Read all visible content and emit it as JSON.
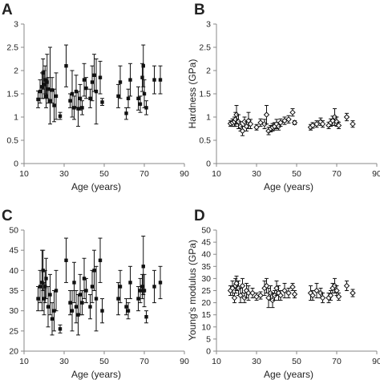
{
  "chart_data": [
    {
      "panel": "A",
      "type": "scatter",
      "marker": "filled-square",
      "xlabel": "Age (years)",
      "ylabel": "",
      "xlim": [
        10,
        90
      ],
      "ylim": [
        0,
        3
      ],
      "x_ticks": [
        "10",
        "30",
        "50",
        "70",
        "90"
      ],
      "y_ticks": [
        "0",
        "0.5",
        "1",
        "1.5",
        "2",
        "2.5",
        "3"
      ],
      "points": [
        {
          "x": 17,
          "y": 1.38,
          "lo": 1.2,
          "hi": 1.56
        },
        {
          "x": 18,
          "y": 1.55,
          "lo": 1.3,
          "hi": 1.8
        },
        {
          "x": 19,
          "y": 1.65,
          "lo": 1.4,
          "hi": 1.95
        },
        {
          "x": 19.5,
          "y": 1.95,
          "lo": 1.6,
          "hi": 2.25
        },
        {
          "x": 20,
          "y": 1.7,
          "lo": 1.4,
          "hi": 2.0
        },
        {
          "x": 20.5,
          "y": 1.8,
          "lo": 1.5,
          "hi": 2.1
        },
        {
          "x": 21,
          "y": 1.45,
          "lo": 1.2,
          "hi": 1.8
        },
        {
          "x": 21.5,
          "y": 1.75,
          "lo": 1.4,
          "hi": 2.35
        },
        {
          "x": 22,
          "y": 1.6,
          "lo": 1.3,
          "hi": 1.85
        },
        {
          "x": 23,
          "y": 1.35,
          "lo": 0.85,
          "hi": 2.5
        },
        {
          "x": 24,
          "y": 1.58,
          "lo": 1.3,
          "hi": 1.85
        },
        {
          "x": 25,
          "y": 1.25,
          "lo": 0.9,
          "hi": 1.6
        },
        {
          "x": 26,
          "y": 1.45,
          "lo": 0.95,
          "hi": 1.95
        },
        {
          "x": 28,
          "y": 1.02,
          "lo": 0.95,
          "hi": 1.1
        },
        {
          "x": 31,
          "y": 2.1,
          "lo": 1.65,
          "hi": 2.55
        },
        {
          "x": 33,
          "y": 1.35,
          "lo": 1.2,
          "hi": 1.5
        },
        {
          "x": 34,
          "y": 1.5,
          "lo": 1.0,
          "hi": 2.0
        },
        {
          "x": 35,
          "y": 1.2,
          "lo": 0.95,
          "hi": 1.45
        },
        {
          "x": 36,
          "y": 1.55,
          "lo": 1.2,
          "hi": 1.9
        },
        {
          "x": 37,
          "y": 1.18,
          "lo": 0.8,
          "hi": 1.55
        },
        {
          "x": 38,
          "y": 1.4,
          "lo": 1.15,
          "hi": 1.7
        },
        {
          "x": 39,
          "y": 1.2,
          "lo": 1.05,
          "hi": 1.35
        },
        {
          "x": 40,
          "y": 1.8,
          "lo": 1.45,
          "hi": 2.15
        },
        {
          "x": 41,
          "y": 1.62,
          "lo": 1.4,
          "hi": 1.85
        },
        {
          "x": 43,
          "y": 1.4,
          "lo": 1.2,
          "hi": 1.6
        },
        {
          "x": 44,
          "y": 1.75,
          "lo": 1.35,
          "hi": 2.1
        },
        {
          "x": 45,
          "y": 1.9,
          "lo": 1.55,
          "hi": 2.35
        },
        {
          "x": 46,
          "y": 1.55,
          "lo": 0.85,
          "hi": 2.25
        },
        {
          "x": 48,
          "y": 1.85,
          "lo": 1.5,
          "hi": 2.2
        },
        {
          "x": 49,
          "y": 1.32,
          "lo": 1.25,
          "hi": 1.4
        },
        {
          "x": 57,
          "y": 1.45,
          "lo": 1.2,
          "hi": 1.7
        },
        {
          "x": 58,
          "y": 1.75,
          "lo": 1.4,
          "hi": 2.1
        },
        {
          "x": 61,
          "y": 1.08,
          "lo": 0.95,
          "hi": 1.2
        },
        {
          "x": 62,
          "y": 1.4,
          "lo": 1.2,
          "hi": 1.6
        },
        {
          "x": 63,
          "y": 1.8,
          "lo": 1.45,
          "hi": 2.15
        },
        {
          "x": 67,
          "y": 1.4,
          "lo": 1.15,
          "hi": 1.65
        },
        {
          "x": 68,
          "y": 1.28,
          "lo": 1.1,
          "hi": 1.45
        },
        {
          "x": 69,
          "y": 1.85,
          "lo": 1.55,
          "hi": 2.15
        },
        {
          "x": 69.5,
          "y": 2.1,
          "lo": 1.65,
          "hi": 2.55
        },
        {
          "x": 70,
          "y": 1.5,
          "lo": 1.2,
          "hi": 1.8
        },
        {
          "x": 71,
          "y": 1.2,
          "lo": 1.05,
          "hi": 1.35
        },
        {
          "x": 75,
          "y": 1.8,
          "lo": 1.5,
          "hi": 2.1
        },
        {
          "x": 78,
          "y": 1.8,
          "lo": 1.5,
          "hi": 2.1
        }
      ]
    },
    {
      "panel": "B",
      "type": "scatter",
      "marker": "open-diamond",
      "xlabel": "Age (years)",
      "ylabel": "Hardness (GPa)",
      "xlim": [
        10,
        90
      ],
      "ylim": [
        0,
        3
      ],
      "x_ticks": [
        "10",
        "30",
        "50",
        "70",
        "90"
      ],
      "y_ticks": [
        "0",
        "0.5",
        "1",
        "1.5",
        "2",
        "2.5",
        "3"
      ],
      "points": [
        {
          "x": 17,
          "y": 0.86,
          "lo": 0.8,
          "hi": 0.92
        },
        {
          "x": 18,
          "y": 0.88,
          "lo": 0.8,
          "hi": 0.96
        },
        {
          "x": 19,
          "y": 0.9,
          "lo": 0.8,
          "hi": 1.0
        },
        {
          "x": 19.5,
          "y": 0.95,
          "lo": 0.8,
          "hi": 1.1
        },
        {
          "x": 20,
          "y": 1.05,
          "lo": 0.85,
          "hi": 1.25
        },
        {
          "x": 21,
          "y": 0.9,
          "lo": 0.75,
          "hi": 1.05
        },
        {
          "x": 22,
          "y": 0.8,
          "lo": 0.7,
          "hi": 0.9
        },
        {
          "x": 23,
          "y": 0.7,
          "lo": 0.6,
          "hi": 0.8
        },
        {
          "x": 24,
          "y": 0.9,
          "lo": 0.8,
          "hi": 1.0
        },
        {
          "x": 25,
          "y": 0.8,
          "lo": 0.7,
          "hi": 0.9
        },
        {
          "x": 26,
          "y": 0.92,
          "lo": 0.75,
          "hi": 1.1
        },
        {
          "x": 27,
          "y": 0.85,
          "lo": 0.75,
          "hi": 0.95
        },
        {
          "x": 30,
          "y": 0.78,
          "lo": 0.72,
          "hi": 0.84
        },
        {
          "x": 32,
          "y": 0.88,
          "lo": 0.8,
          "hi": 0.96
        },
        {
          "x": 34,
          "y": 0.85,
          "lo": 0.75,
          "hi": 0.95
        },
        {
          "x": 35,
          "y": 1.05,
          "lo": 0.85,
          "hi": 1.25
        },
        {
          "x": 36,
          "y": 0.7,
          "lo": 0.62,
          "hi": 0.78
        },
        {
          "x": 37,
          "y": 0.75,
          "lo": 0.68,
          "hi": 0.82
        },
        {
          "x": 38,
          "y": 0.78,
          "lo": 0.7,
          "hi": 0.86
        },
        {
          "x": 39,
          "y": 0.8,
          "lo": 0.72,
          "hi": 0.88
        },
        {
          "x": 40,
          "y": 0.85,
          "lo": 0.75,
          "hi": 0.95
        },
        {
          "x": 41,
          "y": 0.8,
          "lo": 0.72,
          "hi": 0.88
        },
        {
          "x": 42,
          "y": 0.88,
          "lo": 0.8,
          "hi": 0.96
        },
        {
          "x": 44,
          "y": 0.92,
          "lo": 0.84,
          "hi": 1.0
        },
        {
          "x": 46,
          "y": 0.95,
          "lo": 0.87,
          "hi": 1.03
        },
        {
          "x": 48,
          "y": 1.1,
          "lo": 1.02,
          "hi": 1.18
        },
        {
          "x": 49,
          "y": 0.88,
          "lo": 0.84,
          "hi": 0.92
        },
        {
          "x": 57,
          "y": 0.78,
          "lo": 0.72,
          "hi": 0.84
        },
        {
          "x": 58,
          "y": 0.82,
          "lo": 0.76,
          "hi": 0.88
        },
        {
          "x": 60,
          "y": 0.85,
          "lo": 0.78,
          "hi": 0.92
        },
        {
          "x": 62,
          "y": 0.9,
          "lo": 0.82,
          "hi": 0.98
        },
        {
          "x": 63,
          "y": 0.85,
          "lo": 0.78,
          "hi": 0.92
        },
        {
          "x": 66,
          "y": 0.82,
          "lo": 0.75,
          "hi": 0.89
        },
        {
          "x": 67,
          "y": 0.88,
          "lo": 0.8,
          "hi": 0.96
        },
        {
          "x": 68,
          "y": 0.92,
          "lo": 0.82,
          "hi": 1.02
        },
        {
          "x": 69,
          "y": 1.0,
          "lo": 0.82,
          "hi": 1.18
        },
        {
          "x": 70,
          "y": 0.9,
          "lo": 0.8,
          "hi": 1.0
        },
        {
          "x": 71,
          "y": 0.82,
          "lo": 0.75,
          "hi": 0.89
        },
        {
          "x": 75,
          "y": 1.0,
          "lo": 0.92,
          "hi": 1.08
        },
        {
          "x": 78,
          "y": 0.85,
          "lo": 0.78,
          "hi": 0.92
        }
      ]
    },
    {
      "panel": "C",
      "type": "scatter",
      "marker": "filled-square",
      "xlabel": "Age (years)",
      "ylabel": "",
      "xlim": [
        10,
        90
      ],
      "ylim": [
        20,
        50
      ],
      "x_ticks": [
        "10",
        "30",
        "50",
        "70",
        "90"
      ],
      "y_ticks": [
        "20",
        "25",
        "30",
        "35",
        "40",
        "45",
        "50"
      ],
      "points": [
        {
          "x": 17,
          "y": 33,
          "lo": 30,
          "hi": 36
        },
        {
          "x": 18,
          "y": 36,
          "lo": 32,
          "hi": 40
        },
        {
          "x": 19,
          "y": 37,
          "lo": 30,
          "hi": 45
        },
        {
          "x": 19.5,
          "y": 40,
          "lo": 35,
          "hi": 45
        },
        {
          "x": 20,
          "y": 33,
          "lo": 29,
          "hi": 37
        },
        {
          "x": 20.5,
          "y": 36,
          "lo": 32,
          "hi": 40
        },
        {
          "x": 21,
          "y": 38,
          "lo": 33,
          "hi": 43
        },
        {
          "x": 22,
          "y": 31,
          "lo": 26,
          "hi": 36
        },
        {
          "x": 23,
          "y": 34,
          "lo": 29,
          "hi": 39
        },
        {
          "x": 24,
          "y": 28,
          "lo": 24,
          "hi": 32
        },
        {
          "x": 25,
          "y": 30,
          "lo": 25,
          "hi": 35
        },
        {
          "x": 26,
          "y": 35,
          "lo": 30,
          "hi": 40
        },
        {
          "x": 28,
          "y": 25.5,
          "lo": 24.5,
          "hi": 26.5
        },
        {
          "x": 31,
          "y": 42.5,
          "lo": 37,
          "hi": 48
        },
        {
          "x": 33,
          "y": 32,
          "lo": 29,
          "hi": 35
        },
        {
          "x": 34,
          "y": 30,
          "lo": 25,
          "hi": 35
        },
        {
          "x": 35,
          "y": 37,
          "lo": 32,
          "hi": 42
        },
        {
          "x": 36,
          "y": 31,
          "lo": 27,
          "hi": 35
        },
        {
          "x": 37,
          "y": 29,
          "lo": 24,
          "hi": 34
        },
        {
          "x": 38,
          "y": 34,
          "lo": 29,
          "hi": 39
        },
        {
          "x": 39,
          "y": 32,
          "lo": 29,
          "hi": 35
        },
        {
          "x": 40,
          "y": 38,
          "lo": 33,
          "hi": 43
        },
        {
          "x": 41,
          "y": 35,
          "lo": 32,
          "hi": 38
        },
        {
          "x": 43,
          "y": 31,
          "lo": 28,
          "hi": 34
        },
        {
          "x": 44,
          "y": 36,
          "lo": 32,
          "hi": 40
        },
        {
          "x": 45,
          "y": 40,
          "lo": 35,
          "hi": 45
        },
        {
          "x": 46,
          "y": 33,
          "lo": 25,
          "hi": 41
        },
        {
          "x": 48,
          "y": 42.5,
          "lo": 37,
          "hi": 48
        },
        {
          "x": 49,
          "y": 30,
          "lo": 27,
          "hi": 33
        },
        {
          "x": 57,
          "y": 33,
          "lo": 29,
          "hi": 37
        },
        {
          "x": 58,
          "y": 36,
          "lo": 32,
          "hi": 40
        },
        {
          "x": 61,
          "y": 31,
          "lo": 29,
          "hi": 33
        },
        {
          "x": 62,
          "y": 30,
          "lo": 28,
          "hi": 32
        },
        {
          "x": 63,
          "y": 37,
          "lo": 33,
          "hi": 41
        },
        {
          "x": 67,
          "y": 33,
          "lo": 30,
          "hi": 36
        },
        {
          "x": 68,
          "y": 35,
          "lo": 32,
          "hi": 38
        },
        {
          "x": 69,
          "y": 36,
          "lo": 33,
          "hi": 39
        },
        {
          "x": 69.5,
          "y": 41,
          "lo": 34,
          "hi": 48.5
        },
        {
          "x": 70,
          "y": 35,
          "lo": 31,
          "hi": 39
        },
        {
          "x": 71,
          "y": 28.5,
          "lo": 27,
          "hi": 30
        },
        {
          "x": 75,
          "y": 36,
          "lo": 32,
          "hi": 40
        },
        {
          "x": 78,
          "y": 37,
          "lo": 33,
          "hi": 41
        }
      ]
    },
    {
      "panel": "D",
      "type": "scatter",
      "marker": "open-diamond",
      "xlabel": "Age (years)",
      "ylabel": "Young's modulus (GPa)",
      "xlim": [
        10,
        90
      ],
      "ylim": [
        0,
        50
      ],
      "x_ticks": [
        "10",
        "30",
        "50",
        "70",
        "90"
      ],
      "y_ticks": [
        "0",
        "5",
        "10",
        "15",
        "20",
        "25",
        "30",
        "35",
        "40",
        "45",
        "50"
      ],
      "points": [
        {
          "x": 17,
          "y": 25,
          "lo": 23,
          "hi": 27
        },
        {
          "x": 18,
          "y": 26,
          "lo": 23,
          "hi": 29
        },
        {
          "x": 19,
          "y": 22,
          "lo": 20,
          "hi": 24
        },
        {
          "x": 19.5,
          "y": 27,
          "lo": 24,
          "hi": 30
        },
        {
          "x": 20,
          "y": 28,
          "lo": 25,
          "hi": 31
        },
        {
          "x": 21,
          "y": 26,
          "lo": 23,
          "hi": 29
        },
        {
          "x": 22,
          "y": 23,
          "lo": 20,
          "hi": 26
        },
        {
          "x": 23,
          "y": 27,
          "lo": 24,
          "hi": 30
        },
        {
          "x": 24,
          "y": 22,
          "lo": 20,
          "hi": 24
        },
        {
          "x": 25,
          "y": 25,
          "lo": 22,
          "hi": 28
        },
        {
          "x": 26,
          "y": 24,
          "lo": 21,
          "hi": 27
        },
        {
          "x": 28,
          "y": 24,
          "lo": 22,
          "hi": 26
        },
        {
          "x": 30,
          "y": 22.5,
          "lo": 21,
          "hi": 24
        },
        {
          "x": 32,
          "y": 23,
          "lo": 21.5,
          "hi": 24.5
        },
        {
          "x": 34,
          "y": 26,
          "lo": 23,
          "hi": 29
        },
        {
          "x": 35,
          "y": 27,
          "lo": 24,
          "hi": 30
        },
        {
          "x": 36,
          "y": 22,
          "lo": 18,
          "hi": 26
        },
        {
          "x": 37,
          "y": 24,
          "lo": 21,
          "hi": 27
        },
        {
          "x": 38,
          "y": 21,
          "lo": 18,
          "hi": 24
        },
        {
          "x": 39,
          "y": 23,
          "lo": 21,
          "hi": 25
        },
        {
          "x": 40,
          "y": 26,
          "lo": 23,
          "hi": 29
        },
        {
          "x": 41,
          "y": 24,
          "lo": 21,
          "hi": 27
        },
        {
          "x": 42,
          "y": 23,
          "lo": 21,
          "hi": 25
        },
        {
          "x": 44,
          "y": 25,
          "lo": 22,
          "hi": 28
        },
        {
          "x": 46,
          "y": 24,
          "lo": 22,
          "hi": 26
        },
        {
          "x": 48,
          "y": 26.5,
          "lo": 25,
          "hi": 28
        },
        {
          "x": 49,
          "y": 23.5,
          "lo": 22,
          "hi": 25
        },
        {
          "x": 57,
          "y": 24,
          "lo": 21,
          "hi": 27
        },
        {
          "x": 58,
          "y": 23,
          "lo": 21,
          "hi": 25
        },
        {
          "x": 60,
          "y": 25,
          "lo": 22,
          "hi": 28
        },
        {
          "x": 62,
          "y": 24,
          "lo": 22,
          "hi": 26
        },
        {
          "x": 63,
          "y": 22,
          "lo": 20,
          "hi": 24
        },
        {
          "x": 66,
          "y": 22,
          "lo": 20,
          "hi": 24
        },
        {
          "x": 67,
          "y": 23,
          "lo": 21,
          "hi": 25
        },
        {
          "x": 68,
          "y": 26,
          "lo": 24,
          "hi": 28
        },
        {
          "x": 69,
          "y": 27,
          "lo": 24,
          "hi": 30
        },
        {
          "x": 70,
          "y": 25,
          "lo": 23,
          "hi": 27
        },
        {
          "x": 71,
          "y": 22.5,
          "lo": 21,
          "hi": 24
        },
        {
          "x": 75,
          "y": 27,
          "lo": 25,
          "hi": 29
        },
        {
          "x": 78,
          "y": 24,
          "lo": 22.5,
          "hi": 25.5
        }
      ]
    }
  ],
  "colors": {
    "axis": "#888888",
    "text": "#222222",
    "marker": "#111111",
    "background": "#ffffff"
  }
}
